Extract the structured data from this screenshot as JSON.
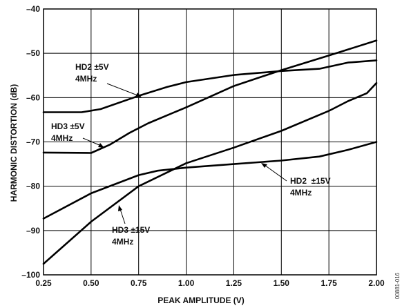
{
  "chart_data": {
    "type": "line",
    "xlabel": "PEAK AMPLITUDE (V)",
    "ylabel": "HARMONIC DISTORTION (dB)",
    "xlim": [
      0.25,
      2.0
    ],
    "ylim": [
      -100,
      -40
    ],
    "xticks": [
      0.25,
      0.5,
      0.75,
      1.0,
      1.25,
      1.5,
      1.75,
      2.0
    ],
    "xtick_labels": [
      "0.25",
      "0.50",
      "0.75",
      "1.00",
      "1.25",
      "1.50",
      "1.75",
      "2.00"
    ],
    "yticks": [
      -100,
      -90,
      -80,
      -70,
      -60,
      -50,
      -40
    ],
    "ytick_labels": [
      "–100",
      "–90",
      "–80",
      "–70",
      "–60",
      "–50",
      "–40"
    ],
    "grid": true,
    "series": [
      {
        "name": "HD2 ±5V 4MHz",
        "x": [
          0.25,
          0.45,
          0.55,
          0.75,
          0.9,
          1.0,
          1.25,
          1.5,
          1.7,
          1.85,
          2.0
        ],
        "y": [
          -63.3,
          -63.3,
          -62.6,
          -59.6,
          -57.6,
          -56.5,
          -54.9,
          -54.0,
          -53.5,
          -52.1,
          -51.6
        ]
      },
      {
        "name": "HD3 ±5V 4MHz",
        "x": [
          0.25,
          0.5,
          0.6,
          0.7,
          0.8,
          1.0,
          1.25,
          1.5,
          1.75,
          2.0
        ],
        "y": [
          -72.4,
          -72.5,
          -70.6,
          -68.0,
          -65.8,
          -62.2,
          -57.4,
          -53.8,
          -50.5,
          -47.1
        ]
      },
      {
        "name": "HD2 ±15V 4MHz",
        "x": [
          0.25,
          0.5,
          0.75,
          0.85,
          1.0,
          1.25,
          1.5,
          1.7,
          1.85,
          2.0
        ],
        "y": [
          -87.3,
          -81.6,
          -77.5,
          -76.5,
          -75.8,
          -75.0,
          -74.2,
          -73.3,
          -71.8,
          -70.0
        ]
      },
      {
        "name": "HD3 ±15V 4MHz",
        "x": [
          0.25,
          0.5,
          0.75,
          1.0,
          1.25,
          1.5,
          1.75,
          1.85,
          1.95,
          2.0
        ],
        "y": [
          -97.5,
          -88.0,
          -80.0,
          -74.8,
          -71.3,
          -67.5,
          -63.0,
          -60.8,
          -59.0,
          -56.7
        ]
      }
    ],
    "annotations": [
      {
        "line1": "HD2 ±5V",
        "line2": "4MHz",
        "series": 0
      },
      {
        "line1": "HD3 ±5V",
        "line2": "4MHz",
        "series": 1
      },
      {
        "line1": "HD2  ±15V",
        "line2": "4MHz",
        "series": 2
      },
      {
        "line1": "HD3 ±15V",
        "line2": "4MHz",
        "series": 3
      }
    ],
    "figure_id": "00881-016"
  }
}
